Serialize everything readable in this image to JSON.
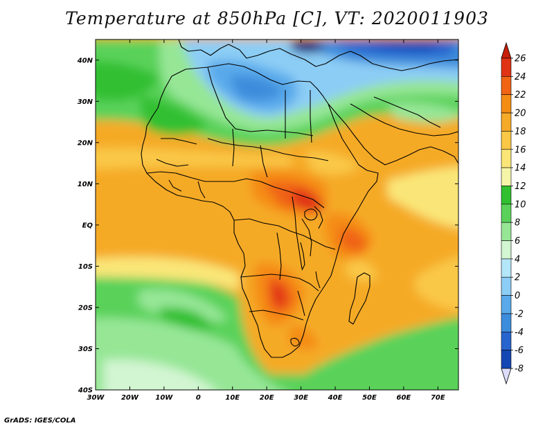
{
  "title": "Temperature at 850hPa [C], VT: 2020011903",
  "credit": "GrADS: IGES/COLA",
  "map": {
    "lon_range": [
      -30,
      76
    ],
    "lat_range": [
      -40,
      45
    ],
    "x_ticks": [
      "30W",
      "20W",
      "10W",
      "0",
      "10E",
      "20E",
      "30E",
      "40E",
      "50E",
      "60E",
      "70E"
    ],
    "x_tick_values": [
      -30,
      -20,
      -10,
      0,
      10,
      20,
      30,
      40,
      50,
      60,
      70
    ],
    "y_ticks": [
      "40S",
      "30S",
      "20S",
      "10S",
      "EQ",
      "10N",
      "20N",
      "30N",
      "40N"
    ],
    "y_tick_values": [
      -40,
      -30,
      -20,
      -10,
      0,
      10,
      20,
      30,
      40
    ]
  },
  "colorbar": {
    "labels": [
      "26",
      "24",
      "22",
      "20",
      "18",
      "16",
      "14",
      "12",
      "10",
      "8",
      "6",
      "4",
      "2",
      "0",
      "-2",
      "-4",
      "-6",
      "-8"
    ],
    "colors": [
      "#e03214",
      "#f06414",
      "#f58c14",
      "#f5aa28",
      "#fac846",
      "#fae678",
      "#f5f5aa",
      "#30c030",
      "#5ad25a",
      "#96e696",
      "#d2f5d2",
      "#b4e6fa",
      "#8ccdf5",
      "#5aaaeb",
      "#3c8cdc",
      "#2864cd",
      "#1446b4",
      "#0a1e78"
    ],
    "over_color": "#c81e0a",
    "under_color": "#dcdcfa"
  }
}
